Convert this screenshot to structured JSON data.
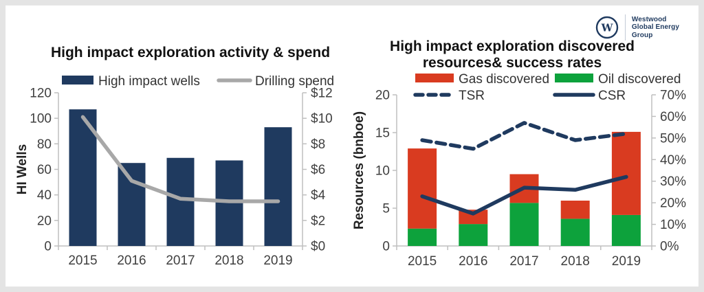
{
  "page": {
    "background_color": "#e4e4e4",
    "card_color": "#ffffff"
  },
  "logo": {
    "monogram": "W",
    "name_lines": [
      "Westwood",
      "Global Energy",
      "Group"
    ],
    "color": "#1f3a5f"
  },
  "chart_data": [
    {
      "type": "bar",
      "title": "High impact exploration activity & spend",
      "title_lines": [
        "High impact exploration activity & spend"
      ],
      "categories": [
        "2015",
        "2016",
        "2017",
        "2018",
        "2019"
      ],
      "series": [
        {
          "name": "High impact wells",
          "type": "bar",
          "axis": "left",
          "color": "#1f3a5f",
          "values": [
            107,
            65,
            69,
            67,
            93
          ]
        },
        {
          "name": "Drilling spend",
          "type": "line",
          "axis": "right",
          "color": "#a8a8a8",
          "values": [
            10.1,
            5.1,
            3.7,
            3.5,
            3.5
          ]
        }
      ],
      "left_axis": {
        "label": "HI Wells",
        "min": 0,
        "max": 120,
        "step": 20,
        "format": "number"
      },
      "right_axis": {
        "label": "",
        "min": 0,
        "max": 12,
        "step": 2,
        "format": "dollar"
      },
      "legend_position": "top",
      "legend_order": [
        "High impact wells",
        "Drilling spend"
      ],
      "grid": false
    },
    {
      "type": "stacked-bar",
      "title": "High impact exploration discovered resources& success rates",
      "title_lines": [
        "High impact exploration discovered",
        "resources& success rates"
      ],
      "categories": [
        "2015",
        "2016",
        "2017",
        "2018",
        "2019"
      ],
      "series": [
        {
          "name": "Oil discovered",
          "type": "bar-stack",
          "axis": "left",
          "color": "#0da23c",
          "values": [
            2.3,
            2.9,
            5.7,
            3.6,
            4.1
          ]
        },
        {
          "name": "Gas discovered",
          "type": "bar-stack",
          "axis": "left",
          "color": "#d93b20",
          "values": [
            10.6,
            1.9,
            3.8,
            2.4,
            11.0
          ]
        },
        {
          "name": "TSR",
          "type": "line-dashed",
          "axis": "right",
          "color": "#1f3a5f",
          "values": [
            49,
            45,
            57,
            49,
            52
          ]
        },
        {
          "name": "CSR",
          "type": "line",
          "axis": "right",
          "color": "#1f3a5f",
          "values": [
            23,
            15,
            27,
            26,
            32
          ]
        }
      ],
      "left_axis": {
        "label": "Resources (bnboe)",
        "min": 0,
        "max": 20,
        "step": 5,
        "format": "number"
      },
      "right_axis": {
        "label": "",
        "min": 0,
        "max": 70,
        "step": 10,
        "format": "percent"
      },
      "legend_position": "top",
      "legend_order": [
        "Gas discovered",
        "Oil discovered",
        "TSR",
        "CSR"
      ],
      "grid": false
    }
  ]
}
